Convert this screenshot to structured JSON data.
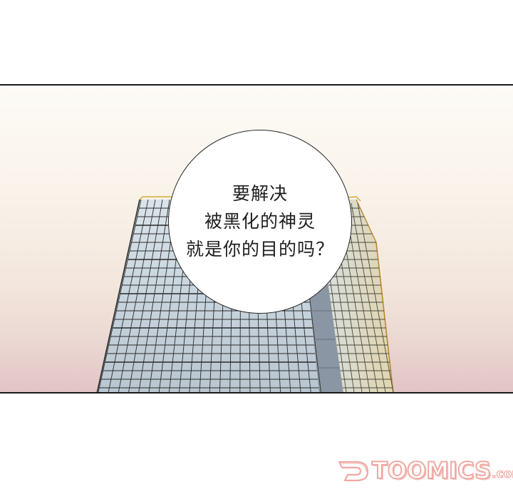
{
  "bubble": {
    "lines": [
      "要解决",
      "被黑化的神灵",
      "就是你的目的吗？"
    ]
  },
  "watermark": {
    "brand": "TOOMICS",
    "suffix": ".com"
  },
  "colors": {
    "panel_border": "#1a1a1a",
    "sky_top": "#fdfbf7",
    "sky_bottom": "#e2c4c4",
    "building_glass": "#c9d6df",
    "building_grid": "#2b2b2b",
    "building_glow": "#e0b24a",
    "watermark_pink": "#f0a9a3"
  }
}
